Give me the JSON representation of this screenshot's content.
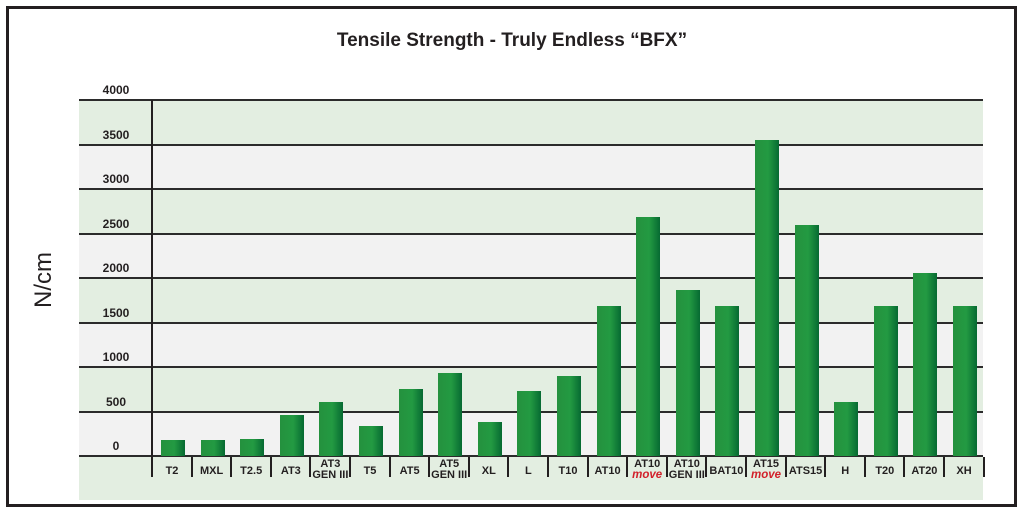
{
  "chart_data": {
    "type": "bar",
    "title": "Tensile Strength - Truly Endless “BFX”",
    "xlabel": "",
    "ylabel": "N/cm",
    "ylim": [
      0,
      4000
    ],
    "yticks": [
      0,
      500,
      1000,
      1500,
      2000,
      2500,
      3000,
      3500,
      4000
    ],
    "grid": true,
    "legend": null,
    "categories": [
      {
        "line1": "T2",
        "line2": "",
        "accent": false
      },
      {
        "line1": "MXL",
        "line2": "",
        "accent": false
      },
      {
        "line1": "T2.5",
        "line2": "",
        "accent": false
      },
      {
        "line1": "AT3",
        "line2": "",
        "accent": false
      },
      {
        "line1": "AT3",
        "line2": "GEN III",
        "accent": false
      },
      {
        "line1": "T5",
        "line2": "",
        "accent": false
      },
      {
        "line1": "AT5",
        "line2": "",
        "accent": false
      },
      {
        "line1": "AT5",
        "line2": "GEN III",
        "accent": false
      },
      {
        "line1": "XL",
        "line2": "",
        "accent": false
      },
      {
        "line1": "L",
        "line2": "",
        "accent": false
      },
      {
        "line1": "T10",
        "line2": "",
        "accent": false
      },
      {
        "line1": "AT10",
        "line2": "",
        "accent": false
      },
      {
        "line1": "AT10",
        "line2": "move",
        "accent": true
      },
      {
        "line1": "AT10",
        "line2": "GEN III",
        "accent": false
      },
      {
        "line1": "BAT10",
        "line2": "",
        "accent": false
      },
      {
        "line1": "AT15",
        "line2": "move",
        "accent": true
      },
      {
        "line1": "ATS15",
        "line2": "",
        "accent": false
      },
      {
        "line1": "H",
        "line2": "",
        "accent": false
      },
      {
        "line1": "T20",
        "line2": "",
        "accent": false
      },
      {
        "line1": "AT20",
        "line2": "",
        "accent": false
      },
      {
        "line1": "XH",
        "line2": "",
        "accent": false
      }
    ],
    "values": [
      180,
      180,
      190,
      460,
      610,
      340,
      755,
      935,
      380,
      730,
      900,
      1690,
      2680,
      1870,
      1690,
      3550,
      2590,
      610,
      1690,
      2060,
      1690
    ],
    "colors": {
      "bar": "#239a42",
      "bar_dark": "#066a32",
      "band_green": "#e3eee1",
      "band_grey": "#f2f2f2",
      "accent_text": "#d2202a",
      "grid": "#2b2b2b"
    }
  }
}
